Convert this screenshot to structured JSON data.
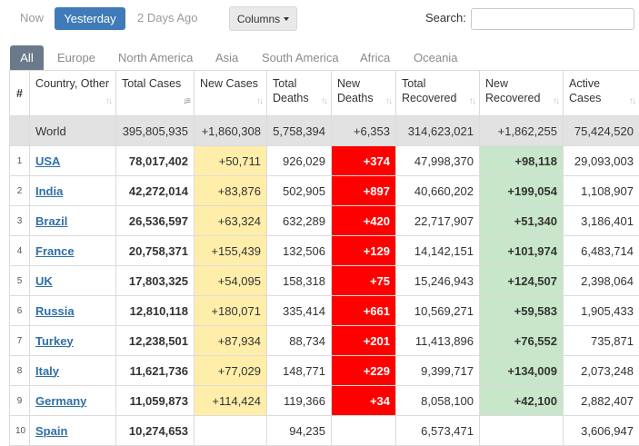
{
  "toolbar": {
    "now": "Now",
    "yesterday": "Yesterday",
    "two_days": "2 Days Ago",
    "columns": "Columns",
    "search_label": "Search:",
    "search_value": ""
  },
  "tabs": [
    "All",
    "Europe",
    "North America",
    "Asia",
    "South America",
    "Africa",
    "Oceania"
  ],
  "table": {
    "headers": {
      "idx": "#",
      "country": "Country, Other",
      "total_cases": "Total Cases",
      "new_cases": "New Cases",
      "total_deaths": "Total Deaths",
      "new_deaths": "New Deaths",
      "total_recovered": "Total Recovered",
      "new_recovered": "New Recovered",
      "active_cases": "Active Cases"
    },
    "world": {
      "country": "World",
      "total_cases": "395,805,935",
      "new_cases": "+1,860,308",
      "total_deaths": "5,758,394",
      "new_deaths": "+6,353",
      "total_recovered": "314,623,021",
      "new_recovered": "+1,862,255",
      "active_cases": "75,424,520"
    },
    "rows": [
      {
        "idx": "1",
        "country": "USA",
        "total_cases": "78,017,402",
        "new_cases": "+50,711",
        "total_deaths": "926,029",
        "new_deaths": "+374",
        "total_recovered": "47,998,370",
        "new_recovered": "+98,118",
        "active_cases": "29,093,003"
      },
      {
        "idx": "2",
        "country": "India",
        "total_cases": "42,272,014",
        "new_cases": "+83,876",
        "total_deaths": "502,905",
        "new_deaths": "+897",
        "total_recovered": "40,660,202",
        "new_recovered": "+199,054",
        "active_cases": "1,108,907"
      },
      {
        "idx": "3",
        "country": "Brazil",
        "total_cases": "26,536,597",
        "new_cases": "+63,324",
        "total_deaths": "632,289",
        "new_deaths": "+420",
        "total_recovered": "22,717,907",
        "new_recovered": "+51,340",
        "active_cases": "3,186,401"
      },
      {
        "idx": "4",
        "country": "France",
        "total_cases": "20,758,371",
        "new_cases": "+155,439",
        "total_deaths": "132,506",
        "new_deaths": "+129",
        "total_recovered": "14,142,151",
        "new_recovered": "+101,974",
        "active_cases": "6,483,714"
      },
      {
        "idx": "5",
        "country": "UK",
        "total_cases": "17,803,325",
        "new_cases": "+54,095",
        "total_deaths": "158,318",
        "new_deaths": "+75",
        "total_recovered": "15,246,943",
        "new_recovered": "+124,507",
        "active_cases": "2,398,064"
      },
      {
        "idx": "6",
        "country": "Russia",
        "total_cases": "12,810,118",
        "new_cases": "+180,071",
        "total_deaths": "335,414",
        "new_deaths": "+661",
        "total_recovered": "10,569,271",
        "new_recovered": "+59,583",
        "active_cases": "1,905,433"
      },
      {
        "idx": "7",
        "country": "Turkey",
        "total_cases": "12,238,501",
        "new_cases": "+87,934",
        "total_deaths": "88,734",
        "new_deaths": "+201",
        "total_recovered": "11,413,896",
        "new_recovered": "+76,552",
        "active_cases": "735,871"
      },
      {
        "idx": "8",
        "country": "Italy",
        "total_cases": "11,621,736",
        "new_cases": "+77,029",
        "total_deaths": "148,771",
        "new_deaths": "+229",
        "total_recovered": "9,399,717",
        "new_recovered": "+134,009",
        "active_cases": "2,073,248"
      },
      {
        "idx": "9",
        "country": "Germany",
        "total_cases": "11,059,873",
        "new_cases": "+114,424",
        "total_deaths": "119,366",
        "new_deaths": "+34",
        "total_recovered": "8,058,100",
        "new_recovered": "+42,100",
        "active_cases": "2,882,407"
      },
      {
        "idx": "10",
        "country": "Spain",
        "total_cases": "10,274,653",
        "new_cases": "",
        "total_deaths": "94,235",
        "new_deaths": "",
        "total_recovered": "6,573,471",
        "new_recovered": "",
        "active_cases": "3,606,947"
      }
    ]
  },
  "colors": {
    "active_button": "#3e7bb8",
    "active_tab": "#6b7a8a",
    "new_cases_bg": "#ffeeaa",
    "new_deaths_bg": "#ff0000",
    "new_recovered_bg": "#c8e6c9",
    "world_row_bg": "#e2e2e2",
    "link": "#2f6fa8"
  }
}
